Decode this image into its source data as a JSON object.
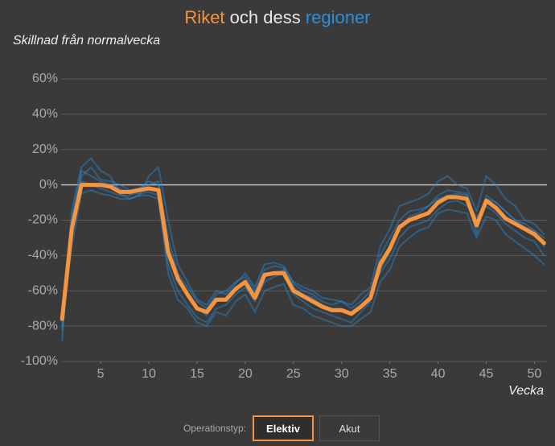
{
  "chart_data": {
    "type": "line",
    "title_parts": [
      "Riket",
      "och dess",
      "regioner"
    ],
    "title_colors": [
      "#f7943e",
      "#e8e8e8",
      "#2b8fd9"
    ],
    "subtitle": "Skillnad från normalvecka",
    "x_label": "Vecka",
    "x": [
      1,
      2,
      3,
      4,
      5,
      6,
      7,
      8,
      9,
      10,
      11,
      12,
      13,
      14,
      15,
      16,
      17,
      18,
      19,
      20,
      21,
      22,
      23,
      24,
      25,
      26,
      27,
      28,
      29,
      30,
      31,
      32,
      33,
      34,
      35,
      36,
      37,
      38,
      39,
      40,
      41,
      42,
      43,
      44,
      45,
      46,
      47,
      48,
      49,
      50,
      51
    ],
    "xlim": [
      0.9,
      51.3
    ],
    "xticks": [
      5,
      10,
      15,
      20,
      25,
      30,
      35,
      40,
      45,
      50
    ],
    "ylim": [
      -100,
      70
    ],
    "yticks": [
      {
        "value": -100,
        "label": "-100%"
      },
      {
        "value": -80,
        "label": "-80%"
      },
      {
        "value": -60,
        "label": "-60%"
      },
      {
        "value": -40,
        "label": "-40%"
      },
      {
        "value": -20,
        "label": "-20%"
      },
      {
        "value": 0,
        "label": "0%"
      },
      {
        "value": 20,
        "label": "20%"
      },
      {
        "value": 40,
        "label": "40%"
      },
      {
        "value": 60,
        "label": "60%"
      }
    ],
    "grid": true,
    "series": [
      {
        "color": "#2b8fd9",
        "values": [
          -88,
          -20,
          8,
          5,
          2,
          0,
          -2,
          -5,
          -5,
          -4,
          -6,
          -45,
          -60,
          -68,
          -75,
          -78,
          -70,
          -68,
          -62,
          -58,
          -66,
          -55,
          -52,
          -50,
          -62,
          -66,
          -70,
          -72,
          -74,
          -76,
          -78,
          -72,
          -66,
          -40,
          -30,
          -20,
          -15,
          -14,
          -12,
          -6,
          -3,
          -4,
          -5,
          -28,
          -6,
          -10,
          -15,
          -20,
          -22,
          -26,
          -30
        ]
      },
      {
        "color": "#2b8fd9",
        "values": [
          -70,
          -30,
          5,
          10,
          3,
          2,
          0,
          -3,
          -2,
          0,
          2,
          -30,
          -50,
          -58,
          -66,
          -70,
          -62,
          -60,
          -55,
          -52,
          -60,
          -48,
          -46,
          -47,
          -56,
          -60,
          -62,
          -66,
          -68,
          -66,
          -70,
          -66,
          -60,
          -50,
          -42,
          -30,
          -24,
          -22,
          -20,
          -14,
          -10,
          -9,
          -12,
          -18,
          -12,
          -16,
          -22,
          -26,
          -30,
          -32,
          -40
        ]
      },
      {
        "color": "#2b8fd9",
        "values": [
          -80,
          -15,
          10,
          15,
          8,
          5,
          -5,
          -8,
          -6,
          5,
          10,
          -20,
          -45,
          -55,
          -65,
          -68,
          -60,
          -62,
          -56,
          -50,
          -58,
          -45,
          -44,
          -46,
          -55,
          -58,
          -60,
          -64,
          -65,
          -66,
          -68,
          -62,
          -58,
          -35,
          -25,
          -12,
          -10,
          -8,
          -5,
          2,
          5,
          0,
          -2,
          -15,
          5,
          0,
          -8,
          -12,
          -20,
          -22,
          -28
        ]
      },
      {
        "color": "#2b8fd9",
        "values": [
          -82,
          -35,
          -5,
          -3,
          -5,
          -6,
          -8,
          -8,
          -6,
          -6,
          -8,
          -50,
          -65,
          -70,
          -78,
          -80,
          -72,
          -74,
          -66,
          -62,
          -72,
          -60,
          -58,
          -56,
          -68,
          -70,
          -74,
          -76,
          -78,
          -80,
          -80,
          -76,
          -72,
          -55,
          -48,
          -35,
          -30,
          -26,
          -24,
          -16,
          -14,
          -15,
          -16,
          -30,
          -18,
          -20,
          -28,
          -32,
          -36,
          -40,
          -45
        ]
      },
      {
        "color": "#2b8fd9",
        "values": [
          -75,
          -22,
          2,
          0,
          -2,
          -4,
          -6,
          -6,
          -2,
          2,
          0,
          -35,
          -55,
          -62,
          -70,
          -74,
          -66,
          -64,
          -58,
          -54,
          -62,
          -52,
          -50,
          -48,
          -58,
          -62,
          -64,
          -68,
          -70,
          -70,
          -72,
          -68,
          -64,
          -48,
          -38,
          -25,
          -18,
          -16,
          -12,
          -8,
          -6,
          -5,
          -6,
          -20,
          -8,
          -10,
          -15,
          -20,
          -24,
          -26,
          -35
        ]
      },
      {
        "color": "#f7943e",
        "values": [
          -76,
          -25,
          0,
          0,
          0,
          -1,
          -4,
          -4,
          -3,
          -2,
          -3,
          -38,
          -53,
          -62,
          -70,
          -72,
          -65,
          -65,
          -59,
          -55,
          -64,
          -51,
          -50,
          -50,
          -60,
          -63,
          -66,
          -69,
          -71,
          -71,
          -73,
          -69,
          -64,
          -45,
          -36,
          -24,
          -20,
          -18,
          -16,
          -10,
          -7,
          -7,
          -8,
          -23,
          -9,
          -13,
          -19,
          -22,
          -25,
          -28,
          -33
        ]
      }
    ]
  },
  "controls": {
    "label": "Operationstyp:",
    "options": [
      "Elektiv",
      "Akut"
    ]
  }
}
